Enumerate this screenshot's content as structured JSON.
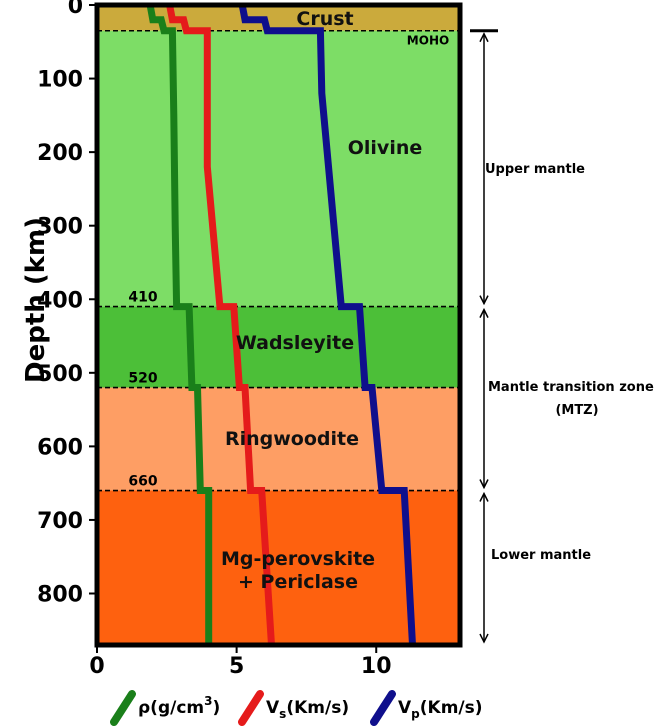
{
  "chart_data": {
    "type": "line",
    "ylabel": "Depth (km)",
    "xlabel": "",
    "xlim": [
      0,
      13
    ],
    "ylim": [
      0,
      870
    ],
    "y_inverted": true,
    "xticks": [
      0,
      5,
      10
    ],
    "yticks": [
      0,
      100,
      200,
      300,
      400,
      500,
      600,
      700,
      800
    ],
    "grid": false,
    "legend_placement": "bottom",
    "layers": [
      {
        "name": "Crust",
        "top": 0,
        "bottom": 35,
        "color": "#cbaa3c"
      },
      {
        "name": "Olivine",
        "top": 35,
        "bottom": 410,
        "color": "#7ddd66"
      },
      {
        "name": "Wadsleyite",
        "top": 410,
        "bottom": 520,
        "color": "#4cbf38"
      },
      {
        "name": "Ringwoodite",
        "top": 520,
        "bottom": 660,
        "color": "#fe9e64"
      },
      {
        "name": "Mg-perovskite\n+ Periclase",
        "top": 660,
        "bottom": 870,
        "color": "#fe610f"
      }
    ],
    "discontinuities": [
      {
        "depth": 35,
        "label": "MOHO"
      },
      {
        "depth": 410,
        "label": "410"
      },
      {
        "depth": 520,
        "label": "520"
      },
      {
        "depth": 660,
        "label": "660"
      }
    ],
    "zones": [
      {
        "label": "Upper mantle",
        "top": 35,
        "bottom": 410
      },
      {
        "label": "Mantle transition zone",
        "label2": "(MTZ)",
        "top": 410,
        "bottom": 660
      },
      {
        "label": "Lower mantle",
        "top": 660,
        "bottom": 870
      }
    ],
    "series": [
      {
        "name": "ρ(g/cm³)",
        "legend_base": "ρ(g/cm",
        "legend_sup": "3",
        "legend_tail": ")",
        "color": "#1a7f1a",
        "points": [
          [
            1.9,
            0
          ],
          [
            2.0,
            20
          ],
          [
            2.3,
            20
          ],
          [
            2.4,
            35
          ],
          [
            2.7,
            35
          ],
          [
            2.75,
            150
          ],
          [
            2.8,
            300
          ],
          [
            2.85,
            410
          ],
          [
            3.3,
            410
          ],
          [
            3.4,
            520
          ],
          [
            3.6,
            520
          ],
          [
            3.7,
            660
          ],
          [
            4.0,
            660
          ],
          [
            4.0,
            870
          ]
        ]
      },
      {
        "name": "Vs(Km/s)",
        "legend_base": "V",
        "legend_sub": "s",
        "legend_tail": "(Km/s)",
        "color": "#e51b1b",
        "points": [
          [
            2.6,
            0
          ],
          [
            2.7,
            20
          ],
          [
            3.1,
            20
          ],
          [
            3.2,
            35
          ],
          [
            3.95,
            35
          ],
          [
            3.95,
            220
          ],
          [
            4.4,
            410
          ],
          [
            4.9,
            410
          ],
          [
            5.1,
            520
          ],
          [
            5.3,
            520
          ],
          [
            5.5,
            660
          ],
          [
            5.9,
            660
          ],
          [
            6.25,
            870
          ]
        ]
      },
      {
        "name": "Vp(Km/s)",
        "legend_base": "V",
        "legend_sub": "p",
        "legend_tail": "(Km/s)",
        "color": "#0f0f8c",
        "points": [
          [
            5.2,
            0
          ],
          [
            5.3,
            20
          ],
          [
            6.0,
            20
          ],
          [
            6.1,
            35
          ],
          [
            8.0,
            35
          ],
          [
            8.05,
            120
          ],
          [
            8.75,
            410
          ],
          [
            9.4,
            410
          ],
          [
            9.6,
            520
          ],
          [
            9.85,
            520
          ],
          [
            10.2,
            660
          ],
          [
            11.0,
            660
          ],
          [
            11.3,
            870
          ]
        ]
      }
    ]
  }
}
